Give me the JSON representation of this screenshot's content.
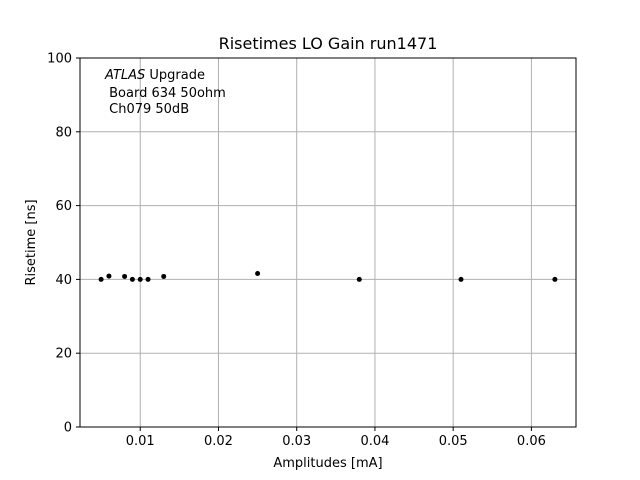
{
  "chart_data": {
    "type": "scatter",
    "title": "Risetimes LO Gain run1471",
    "xlabel": "Amplitudes [mA]",
    "ylabel": "Risetime [ns]",
    "xlim": [
      0.0023,
      0.0657
    ],
    "ylim": [
      0,
      100
    ],
    "x_ticks": [
      "0.01",
      "0.02",
      "0.03",
      "0.04",
      "0.05",
      "0.06"
    ],
    "x_tick_values": [
      0.01,
      0.02,
      0.03,
      0.04,
      0.05,
      0.06
    ],
    "y_ticks": [
      "0",
      "20",
      "40",
      "60",
      "80",
      "100"
    ],
    "y_tick_values": [
      0,
      20,
      40,
      60,
      80,
      100
    ],
    "grid": true,
    "marker_color": "#000000",
    "grid_color": "#b0b0b0",
    "annotation": {
      "line1_italic": "ATLAS",
      "line1_rest": " Upgrade",
      "line2": " Board 634 50ohm",
      "line3": " Ch079 50dB"
    },
    "x": [
      0.005,
      0.006,
      0.008,
      0.009,
      0.01,
      0.011,
      0.013,
      0.025,
      0.038,
      0.051,
      0.063
    ],
    "y": [
      40.0,
      40.9,
      40.8,
      40.0,
      40.0,
      40.0,
      40.8,
      41.6,
      40.0,
      40.0,
      40.0
    ]
  }
}
